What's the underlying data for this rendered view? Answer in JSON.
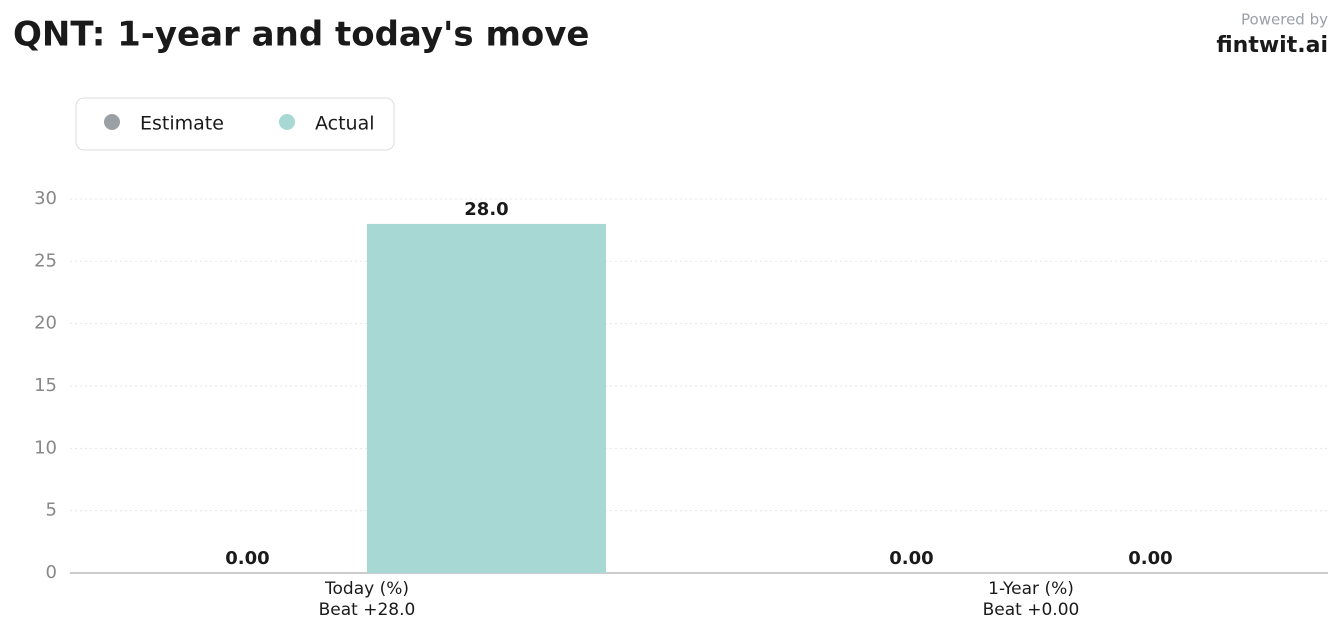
{
  "chart_data": {
    "type": "bar",
    "title": "QNT: 1-year and today's move",
    "powered_by": "Powered by",
    "brand": "fintwit.ai",
    "categories": [
      "Today (%)",
      "1-Year (%)"
    ],
    "category_sublabels": [
      "Beat +28.0",
      "Beat +0.00"
    ],
    "series": [
      {
        "name": "Estimate",
        "color": "#9aa0a6",
        "values": [
          0,
          0
        ],
        "value_labels": [
          "0.00",
          "0.00"
        ]
      },
      {
        "name": "Actual",
        "color": "#a8d8d4",
        "values": [
          28,
          0
        ],
        "value_labels": [
          "28.0",
          "0.00"
        ]
      }
    ],
    "ylim": [
      0,
      30
    ],
    "yticks": [
      0,
      5,
      10,
      15,
      20,
      25,
      30
    ],
    "grid": true
  }
}
